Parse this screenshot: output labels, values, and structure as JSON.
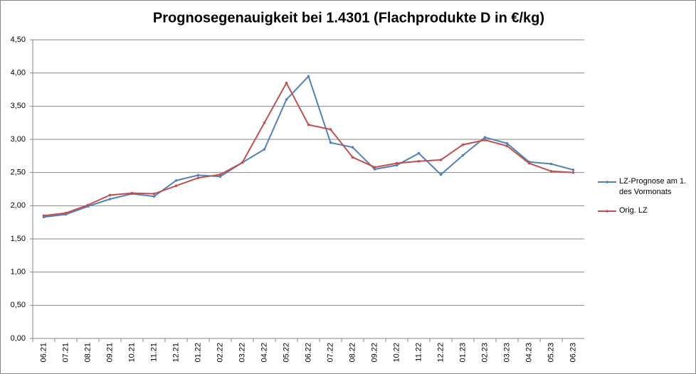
{
  "chart_data": {
    "type": "line",
    "title": "Prognosegenauigkeit bei 1.4301 (Flachprodukte D in €/kg)",
    "categories": [
      "06.21",
      "07.21",
      "08.21",
      "09.21",
      "10.21",
      "11.21",
      "12.21",
      "01.22",
      "02.22",
      "03.22",
      "04.22",
      "05.22",
      "06.22",
      "07.22",
      "08.22",
      "09.22",
      "10.22",
      "11.22",
      "12.22",
      "01.23",
      "02.23",
      "03.23",
      "04.23",
      "05.23",
      "06.23"
    ],
    "series": [
      {
        "name": "LZ-Prognose am 1. des Vormonats",
        "color": "#4f81bd",
        "values": [
          1.83,
          1.87,
          1.99,
          2.1,
          2.18,
          2.14,
          2.38,
          2.46,
          2.44,
          2.65,
          2.85,
          3.6,
          3.95,
          2.95,
          2.88,
          2.55,
          2.61,
          2.79,
          2.47,
          2.76,
          3.03,
          2.94,
          2.66,
          2.63,
          2.54
        ]
      },
      {
        "name": "Orig. LZ",
        "color": "#c0504d",
        "values": [
          1.85,
          1.89,
          2.01,
          2.16,
          2.19,
          2.18,
          2.3,
          2.42,
          2.47,
          2.65,
          3.25,
          3.85,
          3.22,
          3.15,
          2.73,
          2.58,
          2.64,
          2.67,
          2.69,
          2.92,
          2.99,
          2.9,
          2.64,
          2.52,
          2.5
        ]
      }
    ],
    "ylim": [
      0,
      4.5
    ],
    "yticks": [
      {
        "value": 0,
        "label": "0,00"
      },
      {
        "value": 0.5,
        "label": "0,50"
      },
      {
        "value": 1,
        "label": "1,00"
      },
      {
        "value": 1.5,
        "label": "1,50"
      },
      {
        "value": 2,
        "label": "2,00"
      },
      {
        "value": 2.5,
        "label": "2,50"
      },
      {
        "value": 3,
        "label": "3,00"
      },
      {
        "value": 3.5,
        "label": "3,50"
      },
      {
        "value": 4,
        "label": "4,00"
      },
      {
        "value": 4.5,
        "label": "4,50"
      }
    ],
    "grid": true,
    "legend": "right"
  }
}
